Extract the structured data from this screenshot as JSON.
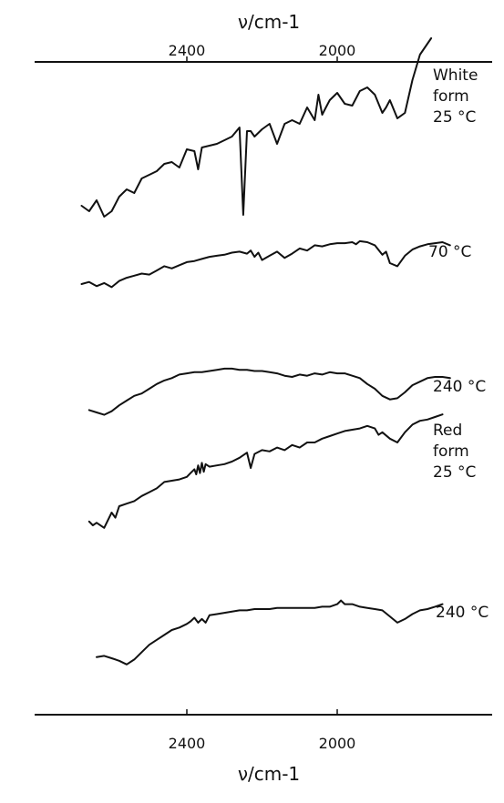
{
  "chart_data": {
    "type": "line",
    "title": "",
    "xlabel_top": "ν/cm-1",
    "xlabel_bottom": "ν/cm-1",
    "x_reversed": true,
    "xlim": [
      2740,
      1690
    ],
    "xticks": [
      2400,
      2000
    ],
    "xtick_labels": [
      "2400",
      "2000"
    ],
    "y_axis_shown": false,
    "grid": false,
    "note": "",
    "series": [
      {
        "name": "White form 25 °C",
        "label_lines": [
          "White",
          "form",
          "25 °C"
        ],
        "x": [
          2680,
          2660,
          2640,
          2620,
          2600,
          2580,
          2560,
          2540,
          2520,
          2500,
          2480,
          2460,
          2440,
          2420,
          2400,
          2380,
          2370,
          2360,
          2340,
          2320,
          2300,
          2280,
          2260,
          2250,
          2240,
          2230,
          2220,
          2200,
          2180,
          2160,
          2140,
          2120,
          2100,
          2080,
          2060,
          2050,
          2040,
          2030,
          2020,
          2000,
          1980,
          1960,
          1940,
          1920,
          1900,
          1880,
          1870,
          1860,
          1840,
          1820,
          1800,
          1780,
          1760,
          1750
        ],
        "y": [
          41,
          38,
          44,
          35,
          38,
          46,
          50,
          48,
          56,
          58,
          60,
          64,
          65,
          62,
          72,
          71,
          61,
          73,
          74,
          75,
          77,
          79,
          84,
          36,
          82,
          82,
          79,
          83,
          86,
          75,
          86,
          88,
          86,
          95,
          88,
          102,
          91,
          95,
          99,
          103,
          97,
          96,
          104,
          106,
          102,
          92,
          95,
          99,
          89,
          92,
          110,
          124,
          130,
          133
        ]
      },
      {
        "name": "70 °C",
        "label_lines": [
          "70 °C"
        ],
        "x": [
          2680,
          2660,
          2640,
          2620,
          2600,
          2580,
          2560,
          2540,
          2520,
          2500,
          2480,
          2460,
          2440,
          2420,
          2400,
          2380,
          2360,
          2340,
          2320,
          2300,
          2280,
          2260,
          2240,
          2230,
          2220,
          2210,
          2200,
          2180,
          2160,
          2140,
          2120,
          2100,
          2080,
          2060,
          2040,
          2020,
          2000,
          1980,
          1960,
          1950,
          1940,
          1920,
          1900,
          1880,
          1870,
          1860,
          1840,
          1820,
          1800,
          1780,
          1760,
          1740,
          1720,
          1700
        ],
        "y": [
          40,
          42,
          38,
          41,
          37,
          43,
          46,
          48,
          50,
          49,
          53,
          57,
          55,
          58,
          61,
          62,
          64,
          66,
          67,
          68,
          70,
          71,
          69,
          72,
          66,
          70,
          63,
          67,
          71,
          65,
          69,
          74,
          72,
          77,
          76,
          78,
          79,
          79,
          80,
          78,
          81,
          80,
          77,
          68,
          71,
          60,
          57,
          67,
          73,
          76,
          78,
          79,
          80,
          77
        ]
      },
      {
        "name": "240 °C",
        "label_lines": [
          "240 °C"
        ],
        "x": [
          2660,
          2640,
          2620,
          2600,
          2580,
          2560,
          2540,
          2520,
          2500,
          2480,
          2460,
          2440,
          2420,
          2400,
          2380,
          2360,
          2340,
          2320,
          2300,
          2280,
          2260,
          2240,
          2220,
          2200,
          2180,
          2160,
          2140,
          2120,
          2100,
          2080,
          2060,
          2040,
          2020,
          2000,
          1980,
          1960,
          1940,
          1920,
          1900,
          1880,
          1860,
          1840,
          1820,
          1800,
          1780,
          1760,
          1740,
          1720,
          1700
        ],
        "y": [
          42,
          40,
          38,
          41,
          46,
          50,
          54,
          56,
          60,
          64,
          67,
          69,
          72,
          73,
          74,
          74,
          75,
          76,
          77,
          77,
          76,
          76,
          75,
          75,
          74,
          73,
          71,
          70,
          72,
          71,
          73,
          72,
          74,
          73,
          73,
          71,
          69,
          64,
          60,
          54,
          51,
          52,
          57,
          63,
          66,
          69,
          70,
          70,
          69
        ]
      },
      {
        "name": "Red form 25 °C",
        "label_lines": [
          "Red",
          "form",
          "25 °C"
        ],
        "x": [
          2660,
          2650,
          2640,
          2620,
          2600,
          2590,
          2580,
          2560,
          2540,
          2520,
          2500,
          2480,
          2460,
          2440,
          2420,
          2400,
          2390,
          2380,
          2375,
          2370,
          2365,
          2360,
          2355,
          2350,
          2340,
          2320,
          2300,
          2280,
          2260,
          2240,
          2230,
          2220,
          2200,
          2180,
          2160,
          2140,
          2120,
          2100,
          2080,
          2060,
          2040,
          2020,
          2000,
          1980,
          1960,
          1940,
          1920,
          1900,
          1890,
          1880,
          1860,
          1840,
          1820,
          1800,
          1780,
          1760,
          1740,
          1720
        ],
        "y": [
          48,
          45,
          47,
          43,
          55,
          51,
          60,
          62,
          64,
          68,
          71,
          74,
          79,
          80,
          81,
          83,
          86,
          89,
          85,
          92,
          86,
          94,
          87,
          93,
          91,
          92,
          93,
          95,
          98,
          102,
          90,
          101,
          104,
          103,
          106,
          104,
          108,
          106,
          110,
          110,
          113,
          115,
          117,
          119,
          120,
          121,
          123,
          121,
          116,
          118,
          113,
          110,
          118,
          124,
          127,
          128,
          130,
          132
        ]
      },
      {
        "name": "240 °C",
        "label_lines": [
          "240 °C"
        ],
        "x": [
          2640,
          2620,
          2600,
          2580,
          2560,
          2540,
          2520,
          2500,
          2480,
          2460,
          2440,
          2420,
          2400,
          2390,
          2380,
          2370,
          2360,
          2350,
          2340,
          2320,
          2300,
          2280,
          2260,
          2240,
          2220,
          2200,
          2180,
          2160,
          2140,
          2120,
          2100,
          2080,
          2060,
          2040,
          2020,
          2000,
          1990,
          1980,
          1960,
          1940,
          1920,
          1900,
          1880,
          1860,
          1840,
          1820,
          1800,
          1780,
          1760,
          1740,
          1720
        ],
        "y": [
          58,
          59,
          57,
          55,
          52,
          56,
          62,
          68,
          72,
          76,
          80,
          82,
          85,
          87,
          90,
          86,
          89,
          86,
          92,
          93,
          94,
          95,
          96,
          96,
          97,
          97,
          97,
          98,
          98,
          98,
          98,
          98,
          98,
          99,
          99,
          101,
          104,
          101,
          101,
          99,
          98,
          97,
          96,
          91,
          86,
          89,
          93,
          96,
          97,
          99,
          101
        ]
      }
    ]
  }
}
